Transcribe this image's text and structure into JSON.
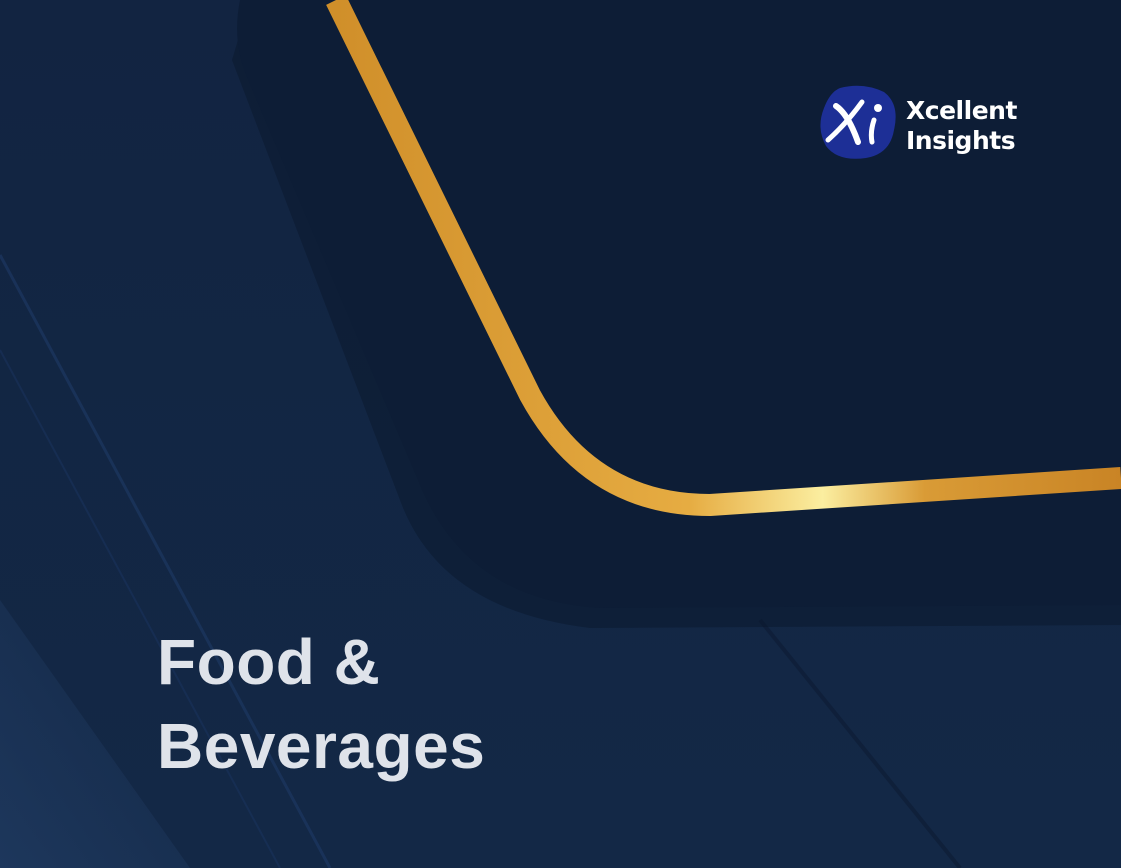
{
  "brand": {
    "line1": "Xcellent",
    "line2": "Insights",
    "monogram": "Xi"
  },
  "cover": {
    "title_line1": "Food &",
    "title_line2": "Beverages"
  },
  "colors": {
    "background": "#122542",
    "panel": "#0d1d36",
    "gold": "#dca03c",
    "gold_highlight": "#fbeea0",
    "title_text": "#dfe3ea",
    "logo_blue": "#1d2f96"
  }
}
